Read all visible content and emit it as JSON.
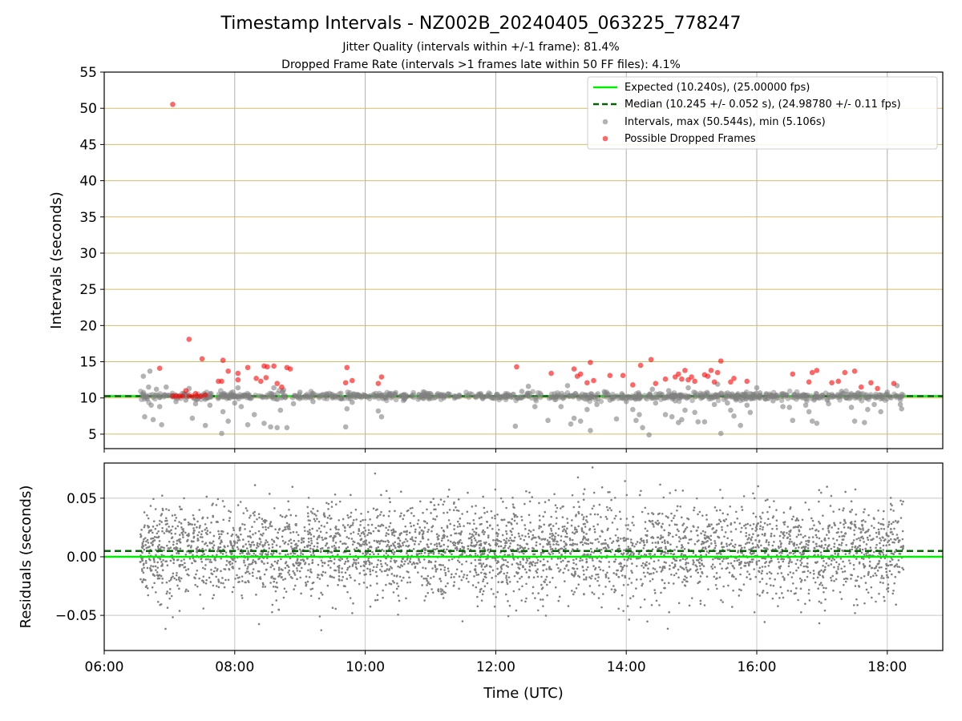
{
  "chart_data": [
    {
      "type": "scatter",
      "title": "Timestamp Intervals - NZ002B_20240405_063225_778247",
      "subtitle_lines": [
        "Jitter Quality (intervals within +/-1 frame): 81.4%",
        "Dropped Frame Rate (intervals >1 frames late within 50 FF files): 4.1%"
      ],
      "xlabel": "",
      "ylabel": "Intervals (seconds)",
      "xlim_hours": [
        6.0,
        18.85
      ],
      "ylim": [
        3,
        55
      ],
      "yticks": [
        5,
        10,
        15,
        20,
        25,
        30,
        35,
        40,
        45,
        50,
        55
      ],
      "yticklabels": [
        "5",
        "10",
        "15",
        "20",
        "25",
        "30",
        "35",
        "40",
        "45",
        "50",
        "55"
      ],
      "xticks_hours": [
        6,
        8,
        10,
        12,
        14,
        16,
        18
      ],
      "grid": true,
      "legend_position": "top-right",
      "reference_lines": [
        {
          "name": "Expected (10.240s), (25.00000 fps)",
          "y": 10.24,
          "style": "solid",
          "color": "#00ee00"
        },
        {
          "name": "Median (10.245 +/- 0.052 s), (24.98780 +/- 0.11 fps)",
          "y": 10.245,
          "style": "dashed",
          "color": "#006400"
        }
      ],
      "series": [
        {
          "name": "Intervals, max (50.544s), min (5.106s)",
          "color": "#808080",
          "description_range_hours": [
            6.55,
            18.25
          ],
          "representative_points": [
            [
              6.6,
              13.0
            ],
            [
              6.62,
              7.4
            ],
            [
              6.68,
              11.5
            ],
            [
              6.7,
              13.7
            ],
            [
              6.72,
              9.0
            ],
            [
              6.75,
              7.0
            ],
            [
              6.8,
              11.2
            ],
            [
              6.85,
              8.8
            ],
            [
              6.88,
              6.3
            ],
            [
              6.95,
              11.5
            ],
            [
              7.1,
              9.5
            ],
            [
              7.25,
              9.7
            ],
            [
              7.3,
              11.3
            ],
            [
              7.35,
              7.2
            ],
            [
              7.4,
              9.2
            ],
            [
              7.55,
              6.2
            ],
            [
              7.62,
              9.0
            ],
            [
              7.8,
              5.1
            ],
            [
              7.82,
              8.1
            ],
            [
              7.9,
              6.8
            ],
            [
              8.0,
              9.3
            ],
            [
              8.05,
              11.4
            ],
            [
              8.1,
              8.8
            ],
            [
              8.2,
              6.3
            ],
            [
              8.3,
              7.7
            ],
            [
              8.45,
              6.5
            ],
            [
              8.55,
              6.0
            ],
            [
              8.6,
              11.4
            ],
            [
              8.65,
              5.9
            ],
            [
              8.7,
              8.3
            ],
            [
              8.75,
              11.1
            ],
            [
              8.8,
              5.9
            ],
            [
              8.9,
              9.2
            ],
            [
              9.0,
              10.8
            ],
            [
              9.2,
              9.5
            ],
            [
              9.7,
              6.0
            ],
            [
              9.72,
              8.5
            ],
            [
              9.8,
              9.4
            ],
            [
              10.2,
              8.2
            ],
            [
              10.25,
              7.4
            ],
            [
              10.6,
              9.8
            ],
            [
              11.0,
              10.6
            ],
            [
              11.8,
              9.9
            ],
            [
              12.3,
              6.1
            ],
            [
              12.4,
              10.9
            ],
            [
              12.5,
              11.6
            ],
            [
              12.6,
              8.8
            ],
            [
              12.8,
              6.9
            ],
            [
              13.0,
              8.8
            ],
            [
              13.1,
              11.7
            ],
            [
              13.15,
              6.4
            ],
            [
              13.2,
              7.2
            ],
            [
              13.3,
              6.8
            ],
            [
              13.4,
              8.4
            ],
            [
              13.45,
              5.5
            ],
            [
              13.55,
              9.1
            ],
            [
              13.75,
              9.7
            ],
            [
              13.85,
              7.1
            ],
            [
              14.0,
              9.5
            ],
            [
              14.1,
              8.4
            ],
            [
              14.15,
              6.9
            ],
            [
              14.2,
              7.7
            ],
            [
              14.25,
              5.9
            ],
            [
              14.35,
              4.9
            ],
            [
              14.4,
              11.2
            ],
            [
              14.45,
              9.3
            ],
            [
              14.6,
              7.7
            ],
            [
              14.65,
              11.0
            ],
            [
              14.7,
              7.4
            ],
            [
              14.75,
              9.6
            ],
            [
              14.8,
              6.6
            ],
            [
              14.85,
              7.0
            ],
            [
              14.9,
              8.3
            ],
            [
              14.95,
              11.4
            ],
            [
              15.05,
              8.0
            ],
            [
              15.1,
              6.7
            ],
            [
              15.2,
              6.7
            ],
            [
              15.35,
              9.1
            ],
            [
              15.4,
              11.9
            ],
            [
              15.45,
              5.1
            ],
            [
              15.55,
              9.3
            ],
            [
              15.6,
              8.3
            ],
            [
              15.65,
              7.5
            ],
            [
              15.75,
              6.2
            ],
            [
              15.85,
              9.0
            ],
            [
              15.9,
              8.0
            ],
            [
              16.0,
              11.4
            ],
            [
              16.05,
              10.7
            ],
            [
              16.25,
              9.6
            ],
            [
              16.4,
              8.8
            ],
            [
              16.5,
              8.7
            ],
            [
              16.55,
              6.9
            ],
            [
              16.75,
              9.0
            ],
            [
              16.8,
              8.1
            ],
            [
              16.85,
              6.8
            ],
            [
              16.92,
              6.5
            ],
            [
              17.1,
              9.2
            ],
            [
              17.3,
              10.9
            ],
            [
              17.45,
              8.7
            ],
            [
              17.5,
              6.8
            ],
            [
              17.65,
              6.6
            ],
            [
              17.7,
              8.4
            ],
            [
              17.8,
              9.1
            ],
            [
              17.9,
              8.1
            ],
            [
              18.0,
              10.8
            ],
            [
              18.15,
              11.7
            ],
            [
              18.2,
              9.1
            ],
            [
              18.22,
              8.5
            ]
          ]
        },
        {
          "name": "Possible Dropped Frames",
          "color": "#ff0000",
          "points": [
            [
              7.05,
              50.54
            ],
            [
              6.85,
              14.1
            ],
            [
              7.3,
              18.1
            ],
            [
              7.25,
              11.0
            ],
            [
              7.5,
              15.4
            ],
            [
              7.75,
              12.3
            ],
            [
              7.8,
              12.3
            ],
            [
              7.82,
              15.2
            ],
            [
              7.9,
              13.7
            ],
            [
              8.05,
              12.5
            ],
            [
              8.05,
              13.4
            ],
            [
              8.2,
              14.2
            ],
            [
              8.33,
              12.7
            ],
            [
              8.4,
              12.3
            ],
            [
              8.45,
              14.4
            ],
            [
              8.5,
              14.3
            ],
            [
              8.48,
              12.8
            ],
            [
              8.6,
              14.4
            ],
            [
              8.65,
              12.0
            ],
            [
              8.72,
              11.5
            ],
            [
              8.8,
              14.2
            ],
            [
              8.85,
              14.0
            ],
            [
              9.7,
              12.1
            ],
            [
              9.72,
              14.2
            ],
            [
              9.8,
              12.4
            ],
            [
              10.2,
              12.0
            ],
            [
              10.25,
              12.9
            ],
            [
              12.32,
              14.3
            ],
            [
              12.85,
              13.4
            ],
            [
              13.2,
              14.0
            ],
            [
              13.25,
              13.0
            ],
            [
              13.3,
              13.3
            ],
            [
              13.4,
              12.1
            ],
            [
              13.45,
              14.9
            ],
            [
              13.5,
              12.4
            ],
            [
              13.75,
              13.1
            ],
            [
              13.95,
              13.1
            ],
            [
              14.1,
              11.8
            ],
            [
              14.22,
              14.5
            ],
            [
              14.38,
              15.3
            ],
            [
              14.45,
              12.0
            ],
            [
              14.6,
              12.6
            ],
            [
              14.75,
              12.9
            ],
            [
              14.8,
              13.3
            ],
            [
              14.85,
              12.6
            ],
            [
              14.9,
              13.8
            ],
            [
              14.95,
              12.5
            ],
            [
              15.0,
              12.9
            ],
            [
              15.05,
              12.3
            ],
            [
              15.2,
              13.2
            ],
            [
              15.25,
              13.0
            ],
            [
              15.3,
              13.8
            ],
            [
              15.35,
              12.2
            ],
            [
              15.4,
              13.5
            ],
            [
              15.45,
              15.1
            ],
            [
              15.6,
              12.2
            ],
            [
              15.65,
              12.7
            ],
            [
              15.85,
              12.3
            ],
            [
              16.55,
              13.3
            ],
            [
              16.8,
              12.2
            ],
            [
              16.85,
              13.5
            ],
            [
              16.92,
              13.8
            ],
            [
              17.15,
              12.1
            ],
            [
              17.25,
              12.3
            ],
            [
              17.35,
              13.5
            ],
            [
              17.5,
              13.7
            ],
            [
              17.6,
              11.5
            ],
            [
              17.75,
              12.1
            ],
            [
              17.85,
              11.3
            ],
            [
              18.1,
              12.0
            ],
            [
              7.05,
              10.25
            ],
            [
              7.1,
              10.25
            ],
            [
              7.15,
              10.25
            ],
            [
              7.2,
              10.25
            ],
            [
              7.3,
              10.25
            ],
            [
              7.35,
              10.25
            ],
            [
              7.42,
              10.25
            ],
            [
              7.48,
              10.25
            ],
            [
              7.55,
              10.4
            ],
            [
              7.4,
              10.6
            ]
          ]
        }
      ]
    },
    {
      "type": "scatter",
      "xlabel": "Time (UTC)",
      "ylabel": "Residuals (seconds)",
      "xlim_hours": [
        6.0,
        18.85
      ],
      "ylim": [
        -0.08,
        0.08
      ],
      "yticks": [
        -0.05,
        0.0,
        0.05
      ],
      "yticklabels": [
        "−0.05",
        "0.00",
        "0.05"
      ],
      "xticks_hours": [
        6,
        8,
        10,
        12,
        14,
        16,
        18
      ],
      "xticklabels": [
        "06:00",
        "08:00",
        "10:00",
        "12:00",
        "14:00",
        "16:00",
        "18:00"
      ],
      "grid": true,
      "reference_lines": [
        {
          "y": 0.0,
          "style": "solid",
          "color": "#00ee00"
        },
        {
          "y": 0.005,
          "style": "dashed",
          "color": "#006400"
        }
      ],
      "series": [
        {
          "color": "#808080",
          "range_hours": [
            6.55,
            18.25
          ],
          "approx_count": 4000,
          "spread_std": 0.02,
          "center": 0.005
        }
      ]
    }
  ]
}
